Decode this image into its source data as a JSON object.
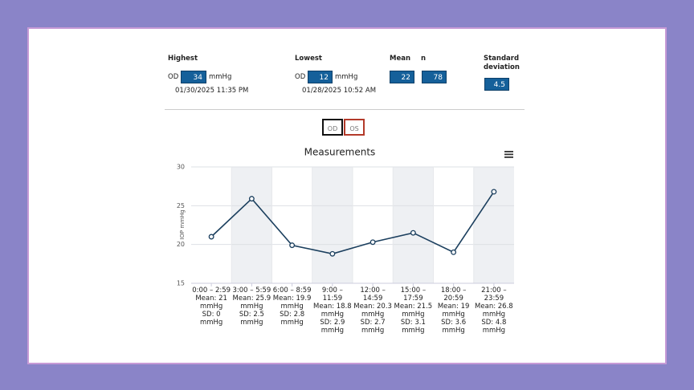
{
  "stats": {
    "highest": {
      "label": "Highest",
      "eye": "OD",
      "value": 34,
      "unit": "mmHg",
      "date": "01/30/2025 11:35 PM"
    },
    "lowest": {
      "label": "Lowest",
      "eye": "OD",
      "value": 12,
      "unit": "mmHg",
      "date": "01/28/2025 10:52 AM"
    },
    "mean": {
      "label": "Mean",
      "value": 22
    },
    "n": {
      "label": "n",
      "value": 78
    },
    "sd": {
      "label": "Standard deviation",
      "value": 4.5
    }
  },
  "buttons": [
    "OD",
    "OS"
  ],
  "chart_data": {
    "type": "line",
    "title": "Measurements",
    "y_label": "IOP mmHg",
    "categories": [
      "0:00 – 2:59",
      "3:00 – 5:59",
      "6:00 – 8:59",
      "9:00 – 11:59",
      "12:00 – 14:59",
      "15:00 – 17:59",
      "18:00 – 20:59",
      "21:00 – 23:59"
    ],
    "category_details": [
      [
        "Mean: 21 mmHg",
        "SD: 0 mmHg"
      ],
      [
        "Mean: 25.9 mmHg",
        "SD: 2.5 mmHg"
      ],
      [
        "Mean: 19.9 mmHg",
        "SD: 2.8 mmHg"
      ],
      [
        "Mean: 18.8 mmHg",
        "SD: 2.9 mmHg"
      ],
      [
        "Mean: 20.3 mmHg",
        "SD: 2.7 mmHg"
      ],
      [
        "Mean: 21.5 mmHg",
        "SD: 3.1 mmHg"
      ],
      [
        "Mean: 19 mmHg",
        "SD: 3.6 mmHg"
      ],
      [
        "Mean: 26.8 mmHg",
        "SD: 4.8 mmHg"
      ]
    ],
    "values": [
      21,
      25.9,
      19.9,
      18.8,
      20.3,
      21.5,
      19,
      26.8
    ],
    "color": "#1b3f5e",
    "ylim": [
      15,
      30
    ],
    "yticks": [
      15,
      20,
      25,
      30
    ],
    "grid": true
  }
}
